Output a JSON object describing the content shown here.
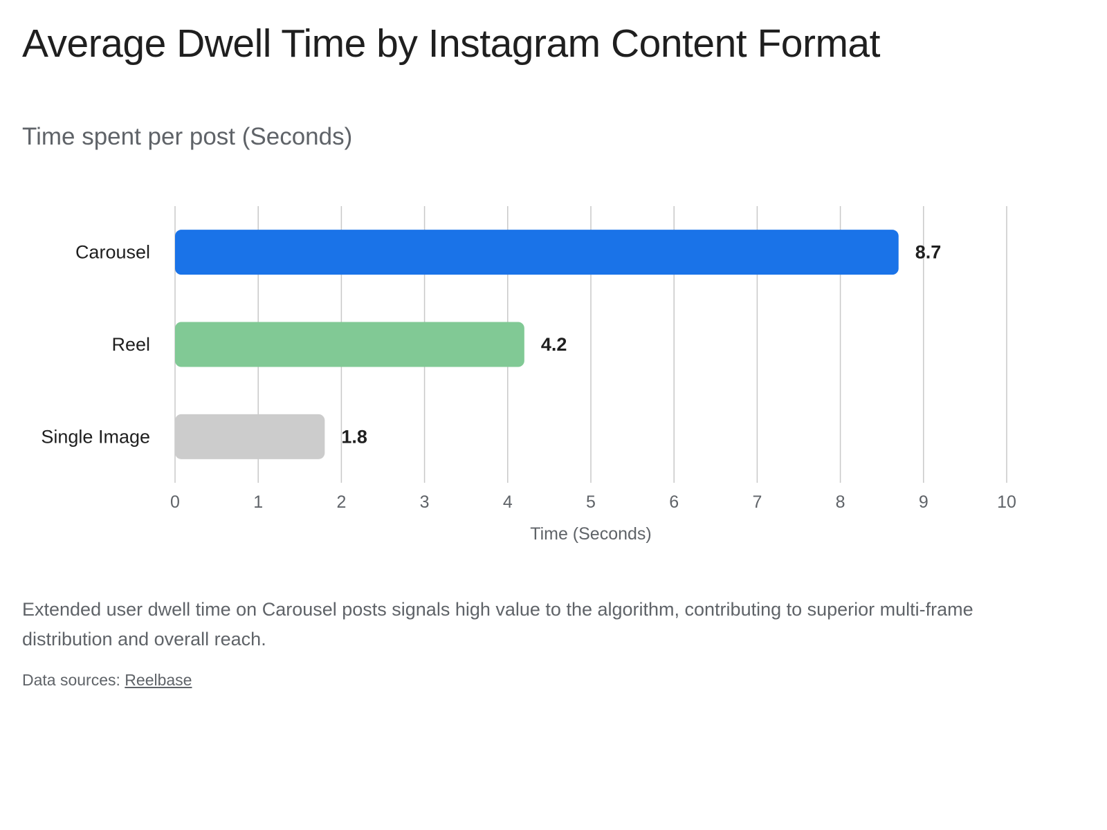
{
  "chart_data": {
    "type": "bar",
    "orientation": "horizontal",
    "title": "Average Dwell Time by Instagram Content Format",
    "subtitle": "Time spent per post (Seconds)",
    "categories": [
      "Carousel",
      "Reel",
      "Single Image"
    ],
    "values": [
      8.7,
      4.2,
      1.8
    ],
    "value_labels": [
      "8.7",
      "4.2",
      "1.8"
    ],
    "bar_colors": [
      "#1a73e8",
      "#81c995",
      "#cccccc"
    ],
    "xlabel": "Time (Seconds)",
    "ylabel": "",
    "xlim": [
      0,
      10
    ],
    "x_ticks": [
      "0",
      "1",
      "2",
      "3",
      "4",
      "5",
      "6",
      "7",
      "8",
      "9",
      "10"
    ],
    "grid": true,
    "legend": "none"
  },
  "caption": "Extended user dwell time on Carousel posts signals high value to the algorithm, contributing to superior multi-frame distribution and overall reach.",
  "sources": {
    "prefix": "Data sources: ",
    "link_label": "Reelbase"
  },
  "colors": {
    "title": "#1f1f1f",
    "muted": "#5f6368",
    "grid": "#c8c8c8"
  }
}
